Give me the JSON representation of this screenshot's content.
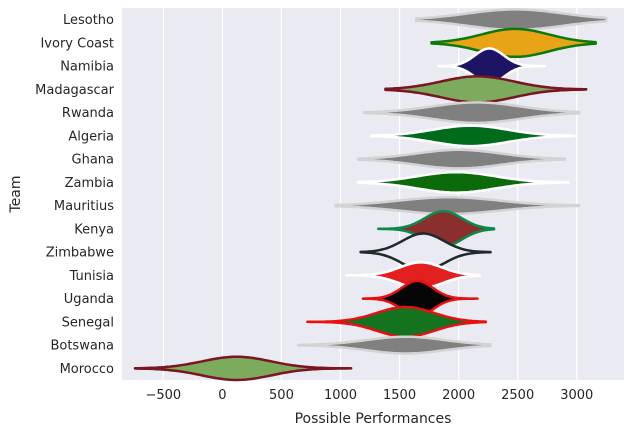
{
  "chart_data": {
    "type": "violin",
    "orientation": "horizontal",
    "title": "",
    "xlabel": "Possible Performances",
    "ylabel": "Team",
    "xlim": [
      -850,
      3400
    ],
    "xticks": [
      -500,
      0,
      500,
      1000,
      1500,
      2000,
      2500,
      3000
    ],
    "grid": true,
    "background": "#eaeaf2",
    "categories": [
      "Lesotho",
      "Ivory Coast",
      "Namibia",
      "Madagascar",
      "Rwanda",
      "Algeria",
      "Ghana",
      "Zambia",
      "Mauritius",
      "Kenya",
      "Zimbabwe",
      "Tunisia",
      "Uganda",
      "Senegal",
      "Botswana",
      "Morocco"
    ],
    "series": [
      {
        "team": "Lesotho",
        "min": 1640,
        "max": 3250,
        "median": 2480,
        "spread": 0.55,
        "halfwidth": 0.22,
        "fill": "#808080",
        "edge": "#d3d3d3"
      },
      {
        "team": "Ivory Coast",
        "min": 1770,
        "max": 3160,
        "median": 2480,
        "spread": 0.45,
        "halfwidth": 0.3,
        "fill": "#e8a317",
        "edge": "#0b7a0b"
      },
      {
        "team": "Namibia",
        "min": 1830,
        "max": 2730,
        "median": 2260,
        "spread": 0.3,
        "halfwidth": 0.38,
        "fill": "#1d1463",
        "edge": "#ffffff"
      },
      {
        "team": "Madagascar",
        "min": 1380,
        "max": 3080,
        "median": 2160,
        "spread": 0.4,
        "halfwidth": 0.28,
        "fill": "#7cab5e",
        "edge": "#7a1522"
      },
      {
        "team": "Rwanda",
        "min": 1200,
        "max": 3020,
        "median": 2150,
        "spread": 0.45,
        "halfwidth": 0.22,
        "fill": "#808080",
        "edge": "#d3d3d3"
      },
      {
        "team": "Algeria",
        "min": 1260,
        "max": 2980,
        "median": 2100,
        "spread": 0.4,
        "halfwidth": 0.22,
        "fill": "#006b1a",
        "edge": "#ffffff"
      },
      {
        "team": "Ghana",
        "min": 1150,
        "max": 2900,
        "median": 2000,
        "spread": 0.45,
        "halfwidth": 0.2,
        "fill": "#808080",
        "edge": "#d3d3d3"
      },
      {
        "team": "Zambia",
        "min": 1150,
        "max": 2930,
        "median": 1980,
        "spread": 0.4,
        "halfwidth": 0.22,
        "fill": "#0b6b0b",
        "edge": "#ffffff"
      },
      {
        "team": "Mauritius",
        "min": 960,
        "max": 3020,
        "median": 1920,
        "spread": 0.45,
        "halfwidth": 0.18,
        "fill": "#808080",
        "edge": "#d3d3d3"
      },
      {
        "team": "Kenya",
        "min": 1320,
        "max": 2300,
        "median": 1870,
        "spread": 0.35,
        "halfwidth": 0.38,
        "fill": "#8b2e2e",
        "edge": "#0b8a4b"
      },
      {
        "team": "Zimbabwe",
        "min": 1170,
        "max": 2270,
        "median": 1700,
        "spread": 0.35,
        "halfwidth": 0.4,
        "fill": "#eaeaf2",
        "edge": "#1f2a2a"
      },
      {
        "team": "Tunisia",
        "min": 1050,
        "max": 2180,
        "median": 1680,
        "spread": 0.35,
        "halfwidth": 0.28,
        "fill": "#e32020",
        "edge": "#ffffff"
      },
      {
        "team": "Uganda",
        "min": 1190,
        "max": 2160,
        "median": 1650,
        "spread": 0.3,
        "halfwidth": 0.38,
        "fill": "#050505",
        "edge": "#e81010"
      },
      {
        "team": "Senegal",
        "min": 720,
        "max": 2230,
        "median": 1550,
        "spread": 0.35,
        "halfwidth": 0.32,
        "fill": "#13731f",
        "edge": "#e81010"
      },
      {
        "team": "Botswana",
        "min": 640,
        "max": 2270,
        "median": 1550,
        "spread": 0.45,
        "halfwidth": 0.18,
        "fill": "#808080",
        "edge": "#d3d3d3"
      },
      {
        "team": "Morocco",
        "min": -740,
        "max": 1090,
        "median": 120,
        "spread": 0.35,
        "halfwidth": 0.25,
        "fill": "#7cab5e",
        "edge": "#7a1522"
      }
    ]
  }
}
